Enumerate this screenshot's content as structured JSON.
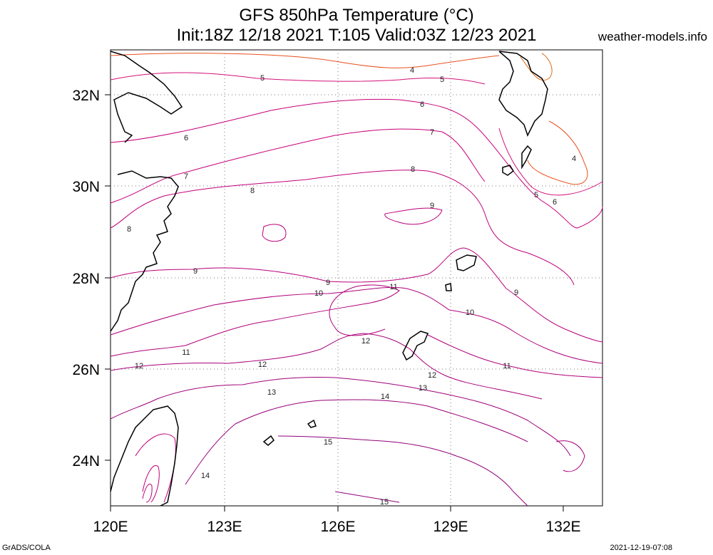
{
  "header": {
    "title_line1": "GFS 850hPa Temperature (°C)",
    "title_line2": "Init:18Z 12/18 2021 T:105 Valid:03Z 12/23 2021",
    "site": "weather-models.info"
  },
  "footer": {
    "left": "GrADS/COLA",
    "right": "2021-12-19-07:08"
  },
  "map": {
    "lon_ticks": [
      "120E",
      "123E",
      "126E",
      "129E",
      "132E"
    ],
    "lat_ticks": [
      "32N",
      "30N",
      "28N",
      "26N",
      "24N"
    ],
    "contour_labels": [
      "4",
      "5",
      "5",
      "6",
      "6",
      "7",
      "7",
      "8",
      "8",
      "9",
      "9",
      "9",
      "10",
      "10",
      "11",
      "11",
      "12",
      "12",
      "12",
      "13",
      "13",
      "14",
      "15",
      "15",
      "8",
      "9",
      "11",
      "12",
      "4",
      "5",
      "6",
      "14"
    ],
    "colors": {
      "cold": "#e8501e",
      "mid": "#c8007a",
      "warm": "#b0007a",
      "coast": "#000000",
      "grid": "#888888"
    }
  }
}
